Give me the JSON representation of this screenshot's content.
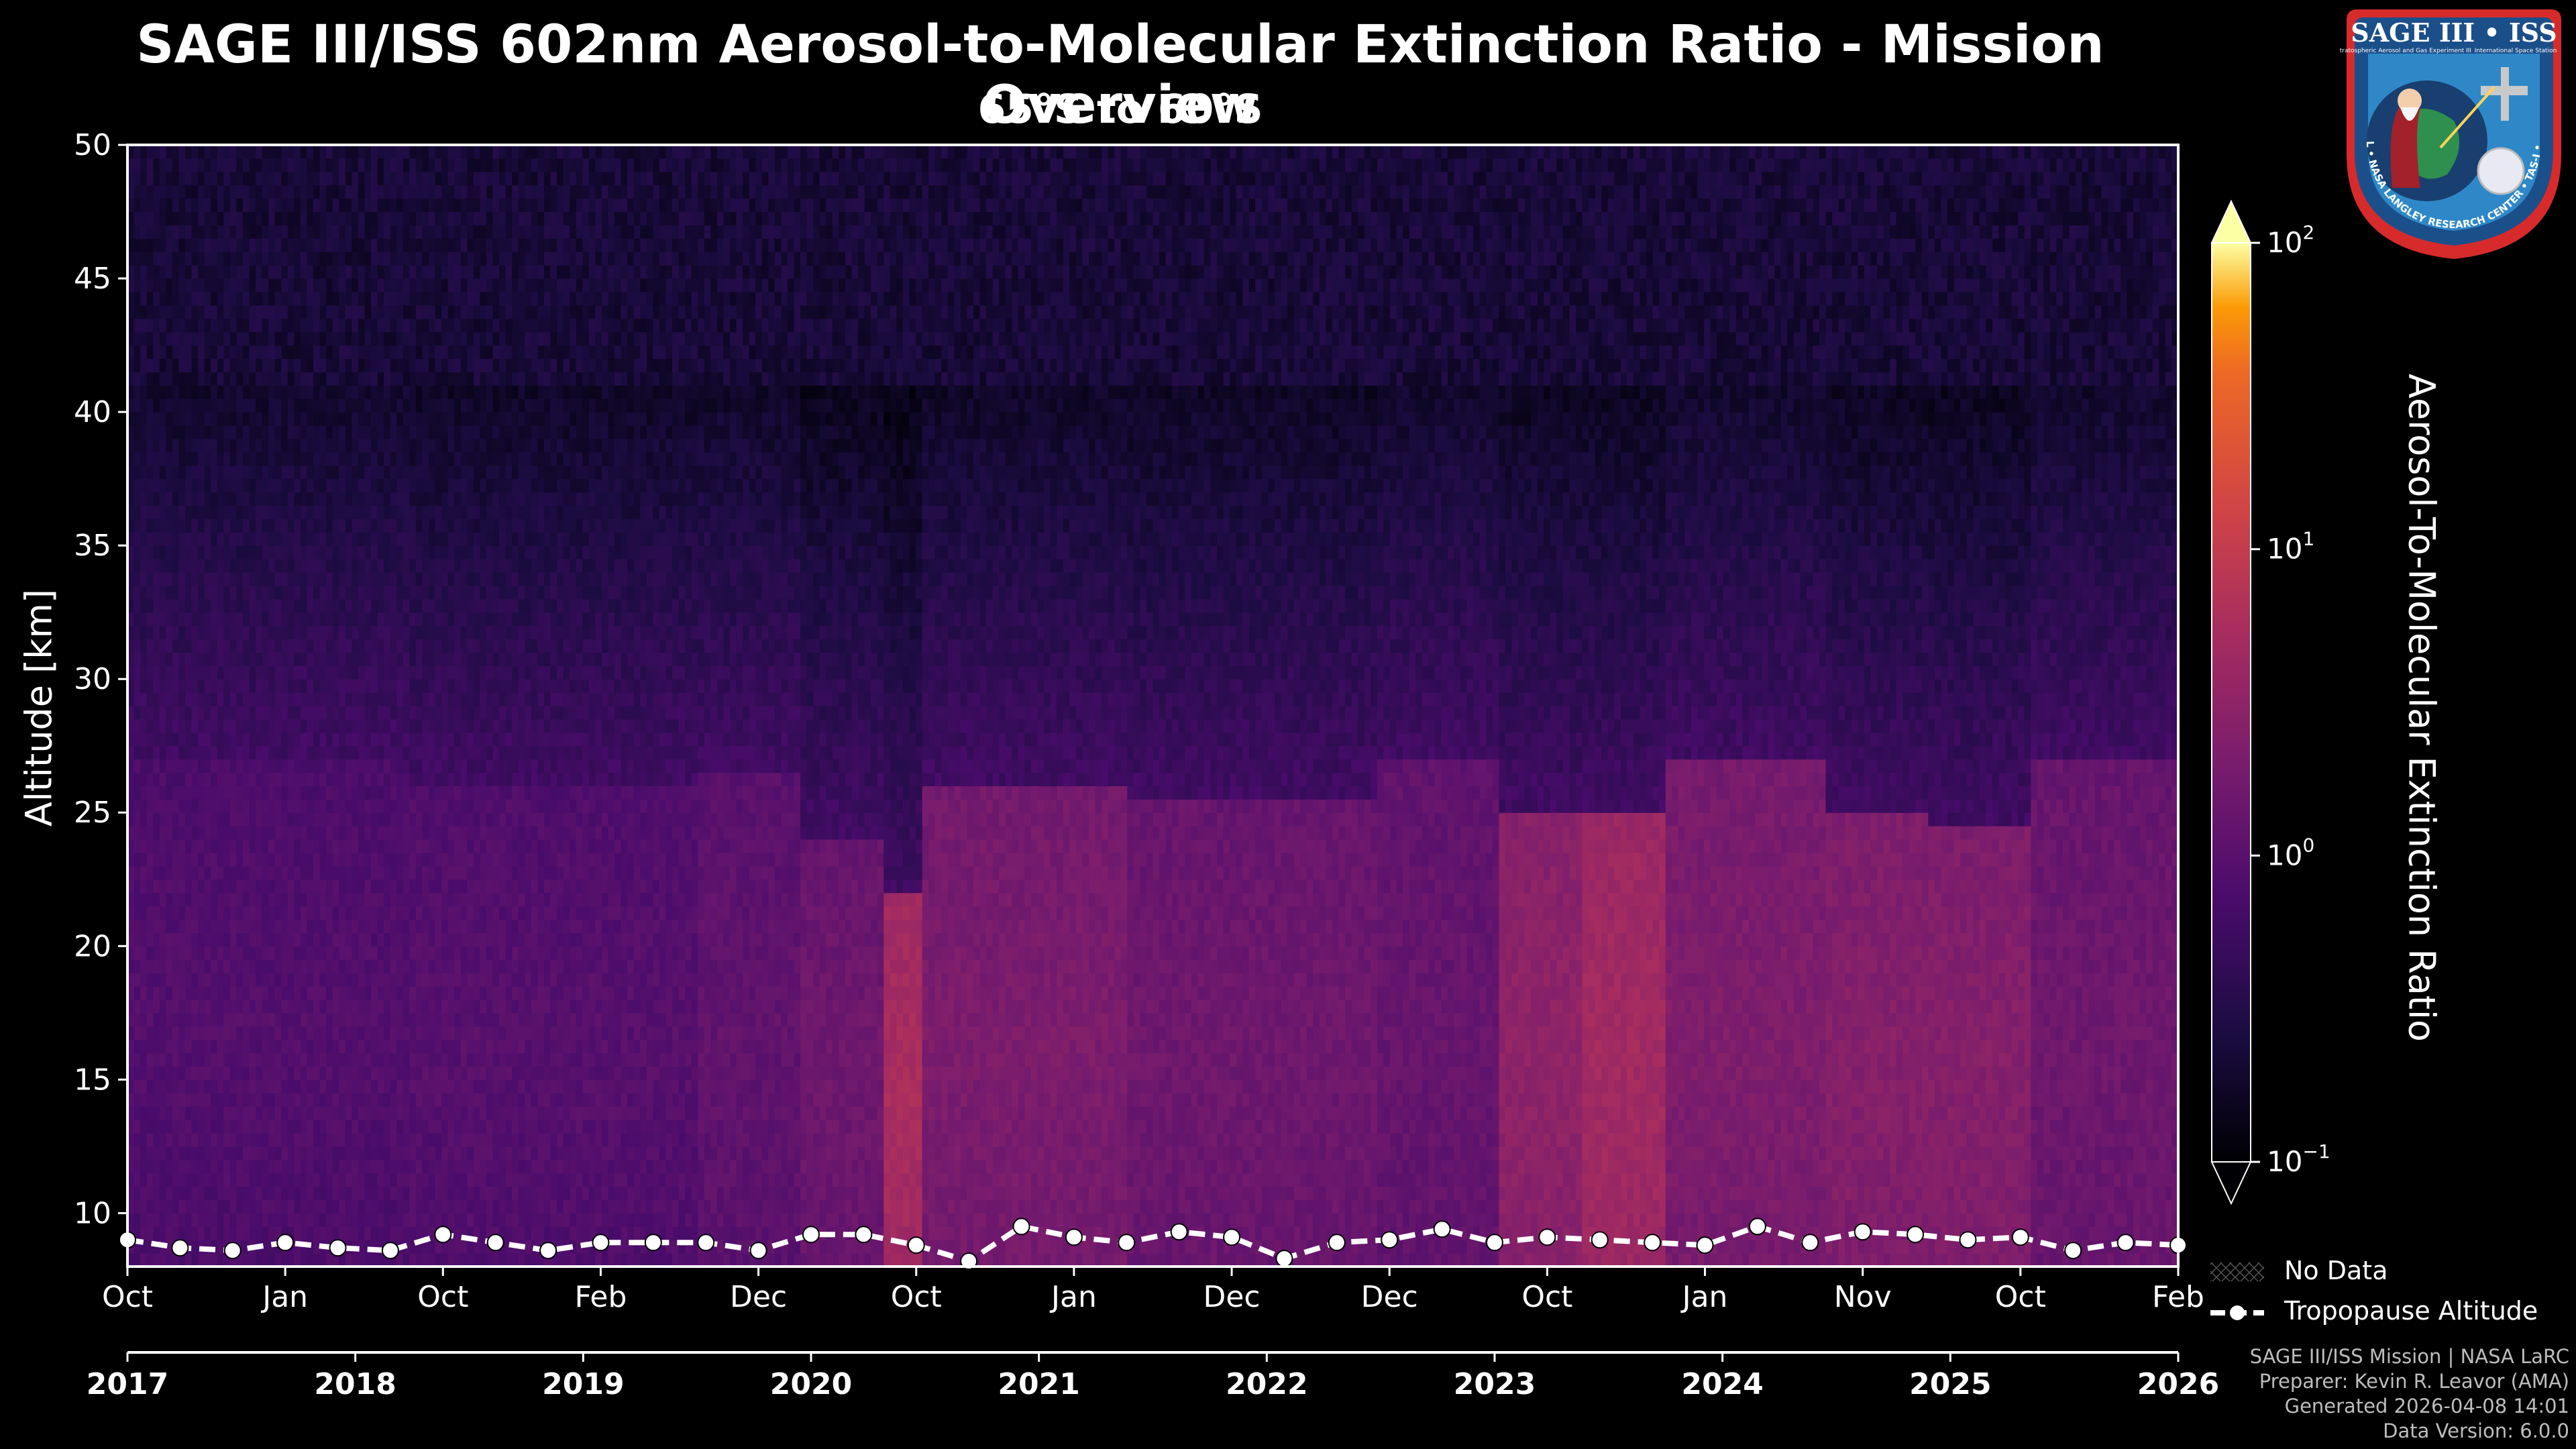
{
  "title": "SAGE III/ISS 602nm Aerosol-to-Molecular Extinction Ratio - Mission Overview",
  "subtitle": "65°S to 60°S",
  "legend": {
    "no_data": "No Data",
    "tropopause": "Tropopause Altitude"
  },
  "credits": [
    "SAGE III/ISS Mission | NASA LaRC",
    "Preparer: Kevin R. Leavor (AMA)",
    "Generated 2026-04-08 14:01",
    "Data Version: 6.0.0"
  ],
  "logo": {
    "top_text": "SAGE III • ISS",
    "left_text": "Stratospheric Aerosol and Gas Experiment III",
    "right_text": "International Space Station",
    "ring_text": "BALL • NASA LANGLEY RESEARCH CENTER • TAS-I • ESA"
  },
  "colors": {
    "background": "#000000",
    "colormap": "inferno",
    "tropopause_line": "#ffffff"
  },
  "chart_data": {
    "type": "heatmap",
    "title": "SAGE III/ISS 602nm Aerosol-to-Molecular Extinction Ratio - Mission Overview",
    "subtitle": "65°S to 60°S",
    "ylabel": "Altitude [km]",
    "colorbar_label": "Aerosol-To-Molecular Extinction Ratio",
    "ylim": [
      8,
      50
    ],
    "yticks": [
      10,
      15,
      20,
      25,
      30,
      35,
      40,
      45,
      50
    ],
    "colorbar_scale": "log",
    "colorbar_range": [
      0.1,
      100
    ],
    "colorbar_ticks": [
      {
        "base": "10",
        "exp": "2"
      },
      {
        "base": "10",
        "exp": "1"
      },
      {
        "base": "10",
        "exp": "0"
      },
      {
        "base": "10",
        "exp": "−1"
      }
    ],
    "month_ticks": [
      "Oct",
      "Jan",
      "Oct",
      "Feb",
      "Dec",
      "Oct",
      "Jan",
      "Dec",
      "Dec",
      "Oct",
      "Jan",
      "Nov",
      "Oct",
      "Feb"
    ],
    "year_ticks": [
      "2017",
      "2018",
      "2019",
      "2020",
      "2021",
      "2022",
      "2023",
      "2024",
      "2025",
      "2026"
    ],
    "observation_bands": [
      {
        "start": 0.0,
        "end": 0.14,
        "top_km": 27.0,
        "level": 0.32
      },
      {
        "start": 0.14,
        "end": 0.28,
        "top_km": 26.0,
        "level": 0.33
      },
      {
        "start": 0.28,
        "end": 0.33,
        "top_km": 26.5,
        "level": 0.36
      },
      {
        "start": 0.33,
        "end": 0.37,
        "top_km": 24.0,
        "level": 0.4
      },
      {
        "start": 0.37,
        "end": 0.39,
        "top_km": 22.0,
        "level": 0.58
      },
      {
        "start": 0.39,
        "end": 0.49,
        "top_km": 26.0,
        "level": 0.44
      },
      {
        "start": 0.49,
        "end": 0.61,
        "top_km": 25.5,
        "level": 0.4
      },
      {
        "start": 0.61,
        "end": 0.67,
        "top_km": 27.0,
        "level": 0.38
      },
      {
        "start": 0.67,
        "end": 0.71,
        "top_km": 25.0,
        "level": 0.5
      },
      {
        "start": 0.71,
        "end": 0.75,
        "top_km": 25.0,
        "level": 0.56
      },
      {
        "start": 0.75,
        "end": 0.83,
        "top_km": 27.0,
        "level": 0.45
      },
      {
        "start": 0.83,
        "end": 0.88,
        "top_km": 25.0,
        "level": 0.47
      },
      {
        "start": 0.88,
        "end": 0.93,
        "top_km": 24.5,
        "level": 0.47
      },
      {
        "start": 0.93,
        "end": 1.0,
        "top_km": 27.0,
        "level": 0.4
      }
    ],
    "tropopause_altitude_km": [
      9.0,
      8.7,
      8.6,
      8.9,
      8.7,
      8.6,
      9.2,
      8.9,
      8.6,
      8.9,
      8.9,
      8.9,
      8.6,
      9.2,
      9.2,
      8.8,
      8.2,
      9.5,
      9.1,
      8.9,
      9.3,
      9.1,
      8.3,
      8.9,
      9.0,
      9.4,
      8.9,
      9.1,
      9.0,
      8.9,
      8.8,
      9.5,
      8.9,
      9.3,
      9.2,
      9.0,
      9.1,
      8.6,
      8.9,
      8.8
    ]
  }
}
